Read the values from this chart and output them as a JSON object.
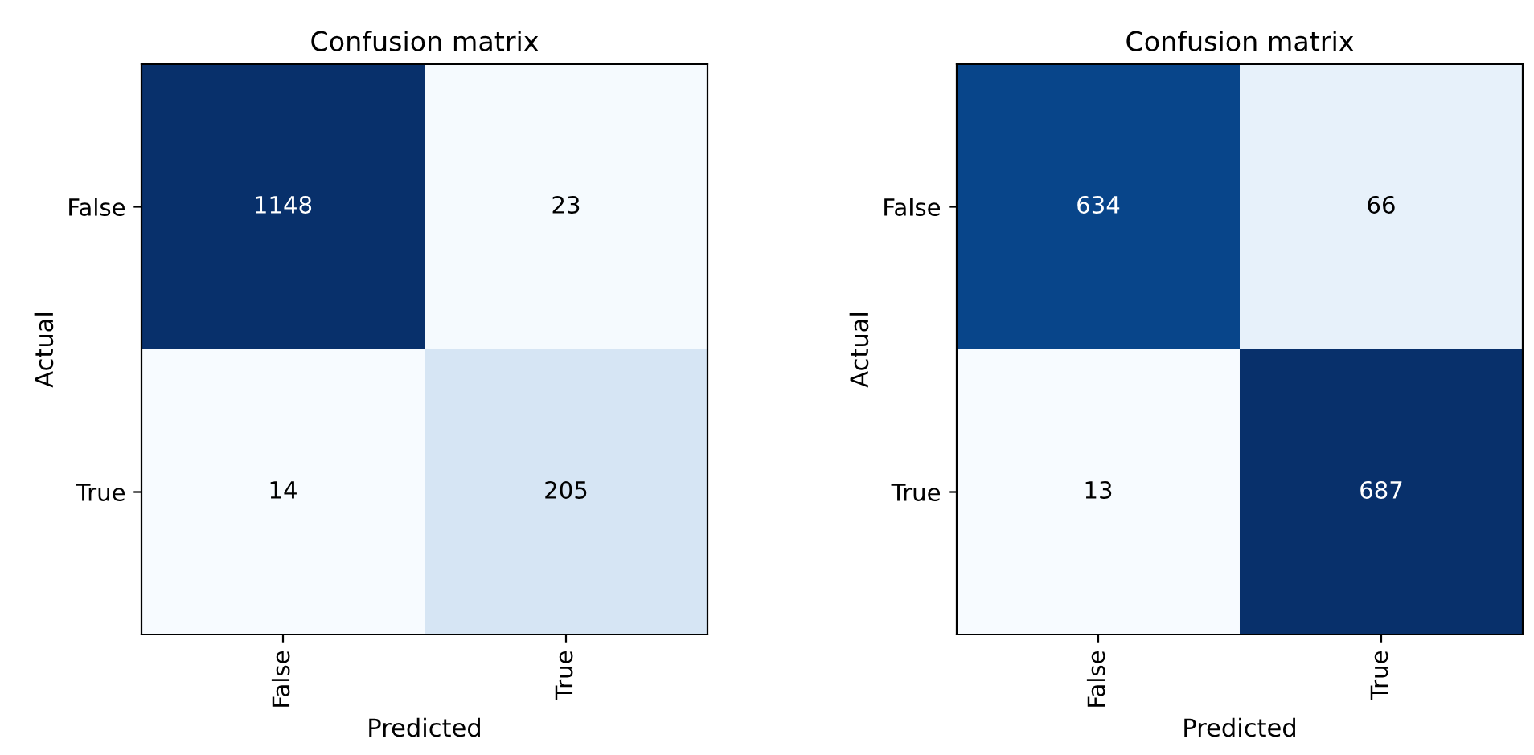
{
  "chart_data": [
    {
      "type": "heatmap",
      "title": "Confusion matrix",
      "xlabel": "Predicted",
      "ylabel": "Actual",
      "categories": [
        "False",
        "True"
      ],
      "y_categories": [
        "False",
        "True"
      ],
      "cells": [
        [
          1148,
          23
        ],
        [
          14,
          205
        ]
      ],
      "data_labels": true
    },
    {
      "type": "heatmap",
      "title": "Confusion matrix",
      "xlabel": "Predicted",
      "ylabel": "Actual",
      "categories": [
        "False",
        "True"
      ],
      "y_categories": [
        "False",
        "True"
      ],
      "cells": [
        [
          634,
          66
        ],
        [
          13,
          687
        ]
      ],
      "data_labels": true
    }
  ]
}
